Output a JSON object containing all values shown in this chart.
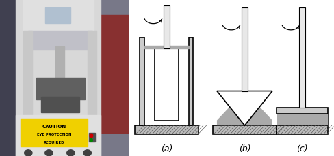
{
  "bg_color": "#ffffff",
  "label_a": "(a)",
  "label_b": "(b)",
  "label_c": "(c)",
  "line_color": "#000000",
  "gray_fill": "#aaaaaa",
  "light_gray": "#cccccc",
  "rod_fill": "#e8e8e8",
  "hatch_gray": "#888888",
  "white": "#ffffff",
  "label_fontsize": 9
}
